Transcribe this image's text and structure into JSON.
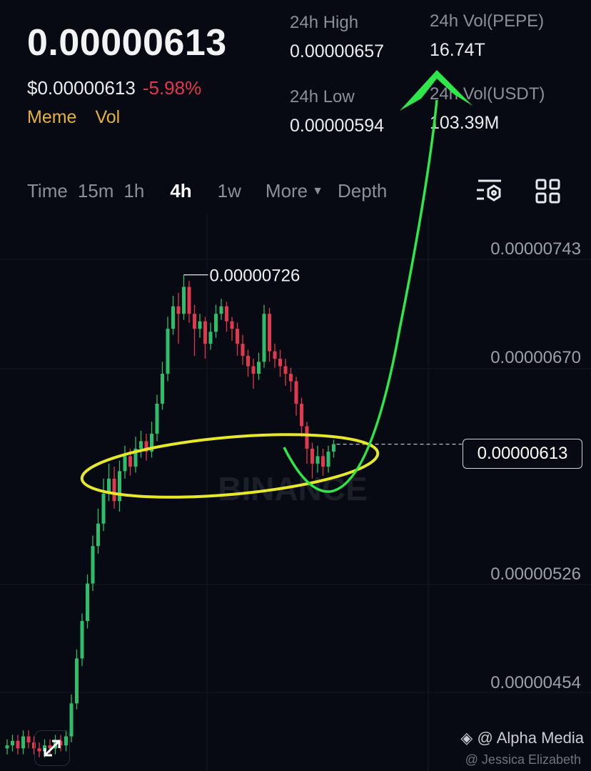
{
  "header": {
    "last_price": "0.00000613",
    "usd_price": "$0.00000613",
    "change_pct": "-5.98%",
    "tags": [
      "Meme",
      "Vol"
    ],
    "stats": {
      "high_label": "24h High",
      "high_value": "0.00000657",
      "low_label": "24h Low",
      "low_value": "0.00000594",
      "vol_base_label": "24h Vol(PEPE)",
      "vol_base_value": "16.74T",
      "vol_quote_label": "24h Vol(USDT)",
      "vol_quote_value": "103.39M"
    }
  },
  "toolbar": {
    "tabs": [
      "Time",
      "15m",
      "1h",
      "4h",
      "1w",
      "More",
      "Depth"
    ],
    "active_tab": "4h",
    "icons": [
      "indicator-settings-icon",
      "grid-layout-icon"
    ]
  },
  "chart": {
    "y_labels": [
      "0.00000743",
      "0.00000670",
      "0.00000526",
      "0.00000454"
    ],
    "y_values": [
      7.43e-06,
      6.7e-06,
      5.26e-06,
      4.54e-06
    ],
    "current_price_label": "0.00000613",
    "current_price": 6.13e-06,
    "peak_label": "0.00000726",
    "peak_value": 7.26e-06,
    "watermark": "BINANCE",
    "colors": {
      "up": "#2ebd6b",
      "down": "#e0384e",
      "annotation_ellipse": "#e8e82a",
      "annotation_arrow": "#2ee84a"
    },
    "ohlc": [
      [
        4.1e-06,
        4.16e-06,
        4.06e-06,
        4.12e-06
      ],
      [
        4.12e-06,
        4.19e-06,
        4.08e-06,
        4.15e-06
      ],
      [
        4.15e-06,
        4.19e-06,
        4.06e-06,
        4.1e-06
      ],
      [
        4.1e-06,
        4.22e-06,
        4.06e-06,
        4.18e-06
      ],
      [
        4.18e-06,
        4.22e-06,
        4.1e-06,
        4.14e-06
      ],
      [
        4.14e-06,
        4.18e-06,
        4.06e-06,
        4.1e-06
      ],
      [
        4.1e-06,
        4.14e-06,
        4.04e-06,
        4.08e-06
      ],
      [
        4.08e-06,
        4.16e-06,
        4.04e-06,
        4.12e-06
      ],
      [
        4.12e-06,
        4.16e-06,
        4.06e-06,
        4.1e-06
      ],
      [
        4.1e-06,
        4.19e-06,
        4.06e-06,
        4.15e-06
      ],
      [
        4.15e-06,
        4.19e-06,
        4.08e-06,
        4.12e-06
      ],
      [
        4.12e-06,
        4.22e-06,
        4.08e-06,
        4.18e-06
      ],
      [
        4.18e-06,
        4.46e-06,
        4.14e-06,
        4.4e-06
      ],
      [
        4.4e-06,
        4.76e-06,
        4.36e-06,
        4.7e-06
      ],
      [
        4.7e-06,
        5e-06,
        4.65e-06,
        4.95e-06
      ],
      [
        4.95e-06,
        5.26e-06,
        4.9e-06,
        5.2e-06
      ],
      [
        5.2e-06,
        5.52e-06,
        5.15e-06,
        5.45e-06
      ],
      [
        5.45e-06,
        5.7e-06,
        5.4e-06,
        5.6e-06
      ],
      [
        5.6e-06,
        5.9e-06,
        5.55e-06,
        5.8e-06
      ],
      [
        5.8e-06,
        6e-06,
        5.75e-06,
        5.9e-06
      ],
      [
        5.9e-06,
        5.98e-06,
        5.7e-06,
        5.75e-06
      ],
      [
        5.75e-06,
        6.02e-06,
        5.68e-06,
        5.95e-06
      ],
      [
        5.95e-06,
        6.12e-06,
        5.9e-06,
        6.05e-06
      ],
      [
        6.05e-06,
        6.1e-06,
        5.92e-06,
        5.98e-06
      ],
      [
        5.98e-06,
        6.18e-06,
        5.94e-06,
        6.1e-06
      ],
      [
        6.1e-06,
        6.22e-06,
        6.04e-06,
        6.15e-06
      ],
      [
        6.15e-06,
        6.2e-06,
        6.02e-06,
        6.08e-06
      ],
      [
        6.08e-06,
        6.28e-06,
        6.04e-06,
        6.2e-06
      ],
      [
        6.2e-06,
        6.46e-06,
        6.15e-06,
        6.4e-06
      ],
      [
        6.4e-06,
        6.68e-06,
        6.36e-06,
        6.6e-06
      ],
      [
        6.6e-06,
        6.98e-06,
        6.55e-06,
        6.9e-06
      ],
      [
        6.9e-06,
        7.12e-06,
        6.86e-06,
        7.05e-06
      ],
      [
        7.05e-06,
        7.14e-06,
        6.8e-06,
        7e-06
      ],
      [
        7e-06,
        7.26e-06,
        6.96e-06,
        7.18e-06
      ],
      [
        7.18e-06,
        7.22e-06,
        6.94e-06,
        7e-06
      ],
      [
        7e-06,
        7.06e-06,
        6.72e-06,
        6.9e-06
      ],
      [
        6.9e-06,
        7e-06,
        6.84e-06,
        6.95e-06
      ],
      [
        6.95e-06,
        6.98e-06,
        6.7e-06,
        6.8e-06
      ],
      [
        6.8e-06,
        6.94e-06,
        6.76e-06,
        6.88e-06
      ],
      [
        6.88e-06,
        7.06e-06,
        6.84e-06,
        7e-06
      ],
      [
        7e-06,
        7.1e-06,
        6.96e-06,
        7.05e-06
      ],
      [
        7.05e-06,
        7.08e-06,
        6.88e-06,
        6.95e-06
      ],
      [
        6.95e-06,
        6.98e-06,
        6.82e-06,
        6.9e-06
      ],
      [
        6.9e-06,
        6.94e-06,
        6.72e-06,
        6.8e-06
      ],
      [
        6.8e-06,
        6.86e-06,
        6.66e-06,
        6.72e-06
      ],
      [
        6.72e-06,
        6.76e-06,
        6.58e-06,
        6.65e-06
      ],
      [
        6.65e-06,
        6.7e-06,
        6.5e-06,
        6.6e-06
      ],
      [
        6.6e-06,
        6.74e-06,
        6.56e-06,
        6.68e-06
      ],
      [
        6.68e-06,
        7.06e-06,
        6.64e-06,
        7e-06
      ],
      [
        7e-06,
        7.04e-06,
        6.68e-06,
        6.75e-06
      ],
      [
        6.75e-06,
        6.8e-06,
        6.64e-06,
        6.7e-06
      ],
      [
        6.7e-06,
        6.76e-06,
        6.58e-06,
        6.65e-06
      ],
      [
        6.65e-06,
        6.7e-06,
        6.52e-06,
        6.6e-06
      ],
      [
        6.6e-06,
        6.64e-06,
        6.48e-06,
        6.55e-06
      ],
      [
        6.55e-06,
        6.58e-06,
        6.32e-06,
        6.4e-06
      ],
      [
        6.4e-06,
        6.44e-06,
        6.18e-06,
        6.25e-06
      ],
      [
        6.25e-06,
        6.28e-06,
        6e-06,
        6.1e-06
      ],
      [
        6.1e-06,
        6.14e-06,
        5.9e-06,
        6e-06
      ],
      [
        6e-06,
        6.12e-06,
        5.94e-06,
        6.05e-06
      ],
      [
        6.05e-06,
        6.1e-06,
        5.92e-06,
        5.98e-06
      ],
      [
        5.98e-06,
        6.12e-06,
        5.94e-06,
        6.08e-06
      ],
      [
        6.08e-06,
        6.16e-06,
        6.04e-06,
        6.13e-06
      ]
    ]
  },
  "watermark": {
    "primary": "@ Alpha Media",
    "secondary": "@ Jessica Elizabeth"
  }
}
